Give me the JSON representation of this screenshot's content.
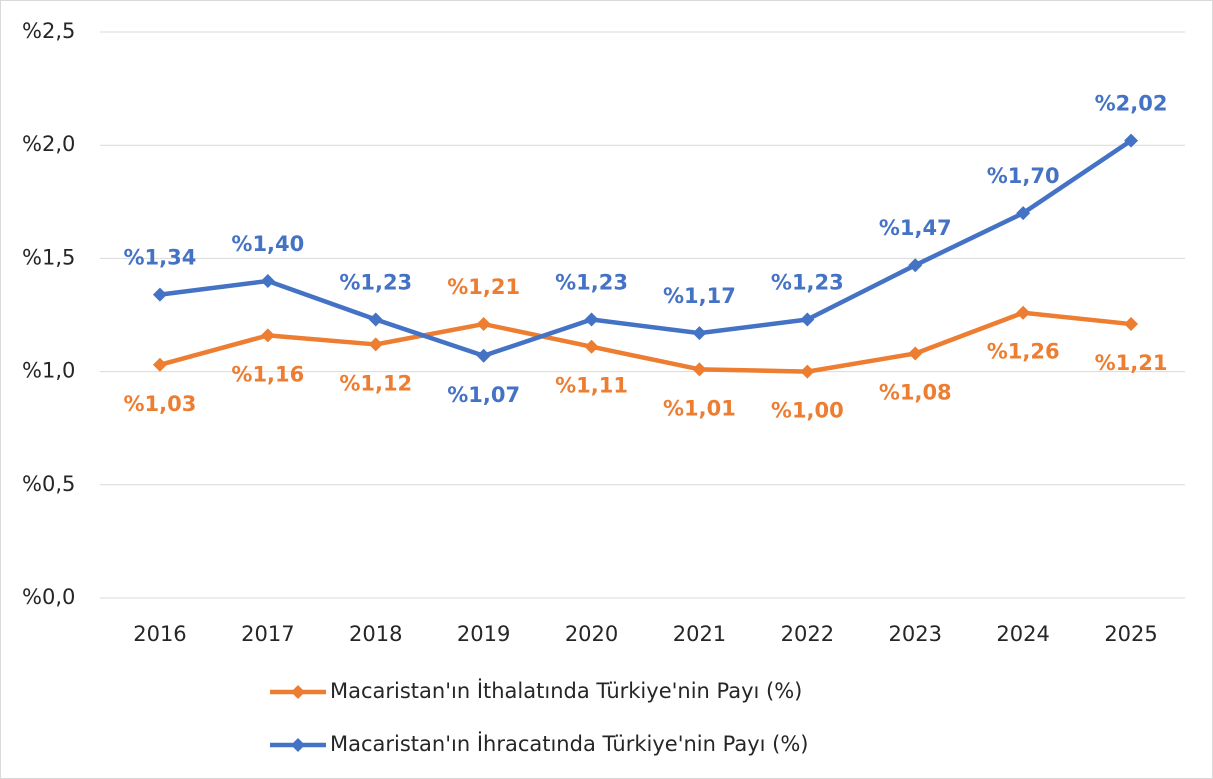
{
  "chart_data": {
    "type": "line",
    "categories": [
      "2016",
      "2017",
      "2018",
      "2019",
      "2020",
      "2021",
      "2022",
      "2023",
      "2024",
      "2025"
    ],
    "series": [
      {
        "name": "Macaristan'ın İthalatında Türkiye'nin Payı (%)",
        "color": "#ed7d31",
        "values": [
          1.03,
          1.16,
          1.12,
          1.21,
          1.11,
          1.01,
          1.0,
          1.08,
          1.26,
          1.21
        ],
        "value_labels": [
          "%1,03",
          "%1,16",
          "%1,12",
          "%1,21",
          "%1,11",
          "%1,01",
          "%1,00",
          "%1,08",
          "%1,26",
          "%1,21"
        ]
      },
      {
        "name": "Macaristan'ın İhracatında Türkiye'nin Payı (%)",
        "color": "#4472c4",
        "values": [
          1.34,
          1.4,
          1.23,
          1.07,
          1.23,
          1.17,
          1.23,
          1.47,
          1.7,
          2.02
        ],
        "value_labels": [
          "%1,34",
          "%1,40",
          "%1,23",
          "%1,07",
          "%1,23",
          "%1,17",
          "%1,23",
          "%1,47",
          "%1,70",
          "%2,02"
        ]
      }
    ],
    "ylim": [
      0,
      2.5
    ],
    "yticks": [
      {
        "value": 0,
        "label": "%0,0"
      },
      {
        "value": 0.5,
        "label": "%0,5"
      },
      {
        "value": 1.0,
        "label": "%1,0"
      },
      {
        "value": 1.5,
        "label": "%1,5"
      },
      {
        "value": 2.0,
        "label": "%2,0"
      },
      {
        "value": 2.5,
        "label": "%2,5"
      }
    ],
    "grid": true,
    "legend": "bottom"
  }
}
